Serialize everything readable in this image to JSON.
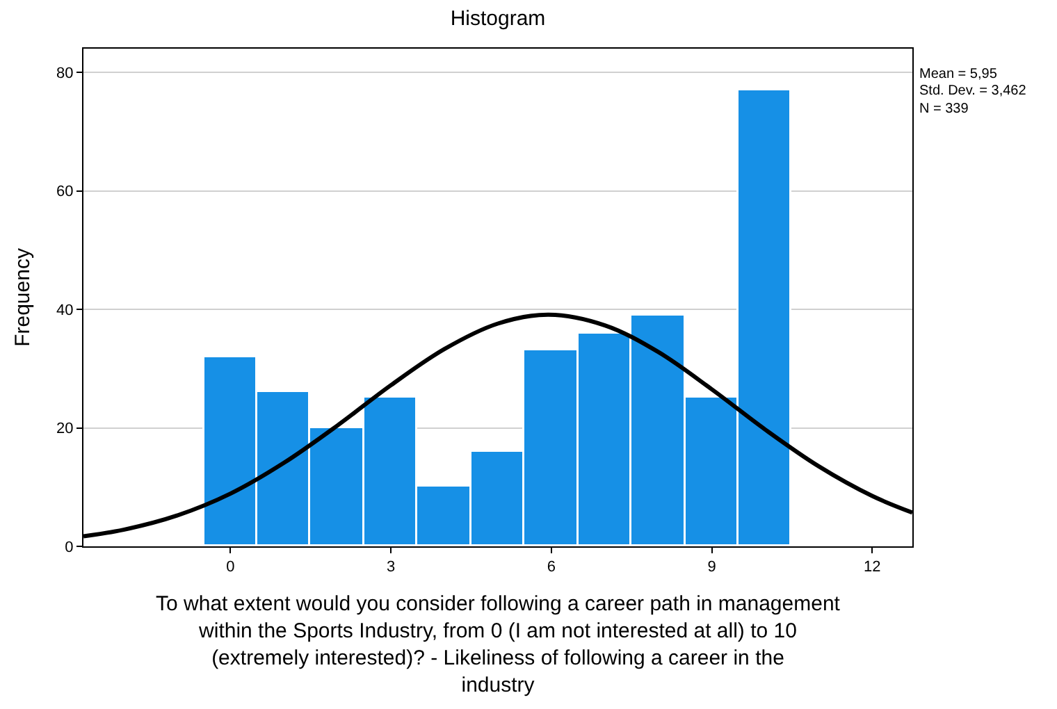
{
  "chart_data": {
    "type": "histogram",
    "title": "Histogram",
    "xlabel": "To what extent would you consider following a career path in management within the Sports Industry, from 0 (I am not interested at all) to 10 (extremely interested)? - Likeliness of following a career in the industry",
    "ylabel": "Frequency",
    "bins": [
      -0.5,
      0.5,
      1.5,
      2.5,
      3.5,
      4.5,
      5.5,
      6.5,
      7.5,
      8.5,
      9.5,
      10.5
    ],
    "values": [
      32,
      26,
      20,
      25,
      10,
      16,
      33,
      36,
      39,
      25,
      77
    ],
    "color": "#1690e6",
    "series": [
      {
        "type": "line",
        "color": "#000000",
        "x": [
          -2.75,
          -2,
          -1,
          0,
          1,
          2,
          3,
          4,
          5,
          5.95,
          7,
          8,
          9,
          10,
          11,
          12,
          12.75
        ],
        "values": [
          1.7,
          2.8,
          5.2,
          8.9,
          14.1,
          20.4,
          27.2,
          33.3,
          37.6,
          39.1,
          37.3,
          32.8,
          26.5,
          19.7,
          13.5,
          8.5,
          5.7
        ]
      }
    ],
    "xlim": [
      -2.75,
      12.75
    ],
    "xticks": [
      0,
      3,
      6,
      9,
      12
    ],
    "ylim": [
      0,
      84
    ],
    "yticks": [
      0,
      20,
      40,
      60,
      80
    ],
    "grid": "y",
    "annotations": [
      "Mean = 5,95",
      "Std. Dev. = 3,462",
      "N = 339"
    ]
  }
}
